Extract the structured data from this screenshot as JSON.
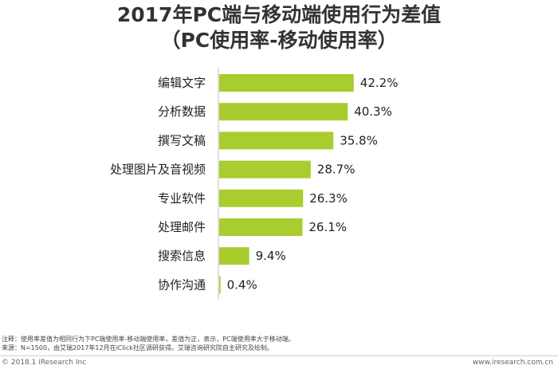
{
  "title_line1": "2017年PC端与移动端使用行为差值",
  "title_line2": "（PC使用率-移动使用率）",
  "chart_data": {
    "type": "bar",
    "orientation": "horizontal",
    "categories": [
      "编辑文字",
      "分析数据",
      "撰写文稿",
      "处理图片及音视频",
      "专业软件",
      "处理邮件",
      "搜索信息",
      "协作沟通"
    ],
    "values": [
      42.2,
      40.3,
      35.8,
      28.7,
      26.3,
      26.1,
      9.4,
      0.4
    ],
    "value_suffix": "%",
    "xlim": [
      0,
      45
    ],
    "bar_color": "#a9cc2e",
    "axis_color": "#bfbfbf",
    "grid": false,
    "legend": "none"
  },
  "notes": {
    "line1": "注释：使用率差值为相同行为下PC端使用率-移动端使用率，差值为正，表示，PC端使用率大于移动端。",
    "line2": "来源：N=1500，由艾瑞2017年12月在iClick社区调研获得。艾瑞咨询研究院自主研究及绘制。"
  },
  "footer": {
    "copyright": "© 2018.1 iResearch Inc",
    "website": "www.iresearch.com.cn"
  }
}
